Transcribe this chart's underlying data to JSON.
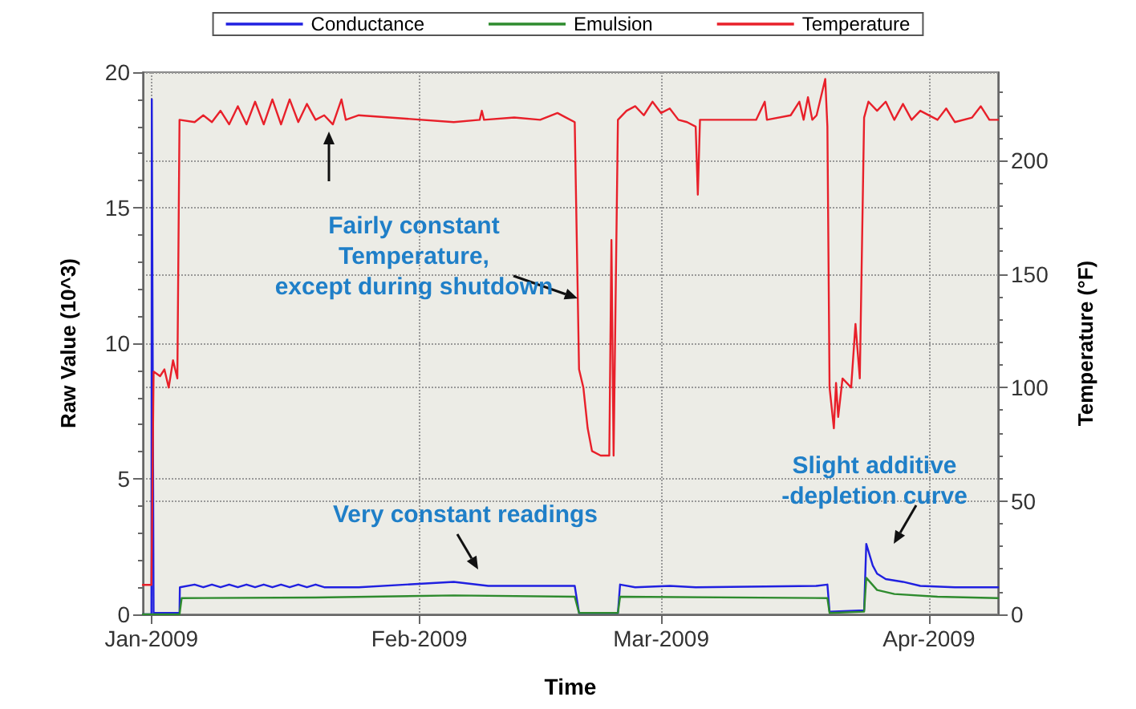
{
  "chart_data": {
    "type": "line",
    "xlabel": "Time",
    "ylabel": "Raw Value (10^3)",
    "y2label": "Temperature (°F)",
    "xlim": [
      "2008-12-31",
      "2009-04-09"
    ],
    "xticks": [
      {
        "value": "2009-01-01",
        "label": "Jan-2009"
      },
      {
        "value": "2009-02-01",
        "label": "Feb-2009"
      },
      {
        "value": "2009-03-01",
        "label": "Mar-2009"
      },
      {
        "value": "2009-04-01",
        "label": "Apr-2009"
      }
    ],
    "ylim": [
      0,
      20
    ],
    "yticks": [
      0,
      5,
      10,
      15,
      20
    ],
    "y2lim": [
      0,
      239
    ],
    "y2ticks": [
      0,
      50,
      100,
      150,
      200
    ],
    "grid": true,
    "legend": "top",
    "marker": "none",
    "line_style": "solid",
    "series": [
      {
        "name": "Conductance",
        "color": "#2020e0",
        "x": [
          "2008-12-31",
          "2009-01-01",
          "2009-01-01T01:00",
          "2009-01-01T06:00",
          "2009-01-04T06:00",
          "2009-01-04T07:00",
          "2009-01-06",
          "2009-01-07",
          "2009-01-08",
          "2009-01-09",
          "2009-01-10",
          "2009-01-11",
          "2009-01-12",
          "2009-01-13",
          "2009-01-14",
          "2009-01-15",
          "2009-01-16",
          "2009-01-17",
          "2009-01-18",
          "2009-01-19",
          "2009-01-20",
          "2009-01-21",
          "2009-01-23",
          "2009-01-25",
          "2009-02-05",
          "2009-02-09",
          "2009-02-19",
          "2009-02-19T12:00",
          "2009-02-24",
          "2009-02-24T06:00",
          "2009-02-26",
          "2009-03-02",
          "2009-03-05",
          "2009-03-19",
          "2009-03-20T06:00",
          "2009-03-20T12:00",
          "2009-03-24T12:00",
          "2009-03-24T18:00",
          "2009-03-25T12:00",
          "2009-03-26",
          "2009-03-27",
          "2009-03-29",
          "2009-03-31",
          "2009-04-04",
          "2009-04-09"
        ],
        "values": [
          0,
          0,
          19,
          0.05,
          0.05,
          1.0,
          1.1,
          1.0,
          1.1,
          1.0,
          1.1,
          1.0,
          1.1,
          1.0,
          1.1,
          1.0,
          1.1,
          1.0,
          1.1,
          1.0,
          1.1,
          1.0,
          1.0,
          1.0,
          1.2,
          1.05,
          1.05,
          0.05,
          0.05,
          1.1,
          1.0,
          1.05,
          1.0,
          1.05,
          1.1,
          0.1,
          0.15,
          2.6,
          1.8,
          1.5,
          1.3,
          1.2,
          1.05,
          1.0,
          1.0
        ]
      },
      {
        "name": "Emulsion",
        "color": "#2e8b2e",
        "x": [
          "2008-12-31",
          "2009-01-04T06:00",
          "2009-01-04T12:00",
          "2009-01-20",
          "2009-02-05",
          "2009-02-19",
          "2009-02-19T12:00",
          "2009-02-24",
          "2009-02-24T06:00",
          "2009-03-20T06:00",
          "2009-03-20T12:00",
          "2009-03-24T12:00",
          "2009-03-24T18:00",
          "2009-03-26",
          "2009-03-28",
          "2009-04-02",
          "2009-04-09"
        ],
        "values": [
          0,
          0,
          0.6,
          0.62,
          0.7,
          0.65,
          0.05,
          0.05,
          0.65,
          0.6,
          0.05,
          0.1,
          1.35,
          0.9,
          0.75,
          0.65,
          0.6
        ]
      },
      {
        "name": "Temperature",
        "color": "#e8202a",
        "axis": "y2",
        "x": [
          "2008-12-31",
          "2009-01-01",
          "2009-01-01T06:00",
          "2009-01-02",
          "2009-01-02T12:00",
          "2009-01-03",
          "2009-01-03T12:00",
          "2009-01-04",
          "2009-01-04T06:00",
          "2009-01-06",
          "2009-01-07",
          "2009-01-08",
          "2009-01-09",
          "2009-01-10",
          "2009-01-11",
          "2009-01-12",
          "2009-01-13",
          "2009-01-14",
          "2009-01-15",
          "2009-01-16",
          "2009-01-17",
          "2009-01-18",
          "2009-01-19",
          "2009-01-20",
          "2009-01-21",
          "2009-01-22",
          "2009-01-23",
          "2009-01-23T12:00",
          "2009-01-25",
          "2009-02-05",
          "2009-02-08",
          "2009-02-08T06:00",
          "2009-02-08T12:00",
          "2009-02-12",
          "2009-02-15",
          "2009-02-17",
          "2009-02-18",
          "2009-02-19",
          "2009-02-19T12:00",
          "2009-02-20",
          "2009-02-20T12:00",
          "2009-02-21",
          "2009-02-22",
          "2009-02-23",
          "2009-02-23T06:00",
          "2009-02-23T12:00",
          "2009-02-24",
          "2009-02-25",
          "2009-02-26",
          "2009-02-27",
          "2009-02-28",
          "2009-03-01",
          "2009-03-02",
          "2009-03-03",
          "2009-03-04",
          "2009-03-05",
          "2009-03-05T06:00",
          "2009-03-05T12:00",
          "2009-03-12",
          "2009-03-13",
          "2009-03-13T06:00",
          "2009-03-16",
          "2009-03-17",
          "2009-03-17T12:00",
          "2009-03-18",
          "2009-03-18T12:00",
          "2009-03-19",
          "2009-03-20",
          "2009-03-20T06:00",
          "2009-03-20T12:00",
          "2009-03-21",
          "2009-03-21T06:00",
          "2009-03-21T12:00",
          "2009-03-22",
          "2009-03-23",
          "2009-03-23T12:00",
          "2009-03-24",
          "2009-03-24T12:00",
          "2009-03-25",
          "2009-03-26",
          "2009-03-27",
          "2009-03-28",
          "2009-03-29",
          "2009-03-30",
          "2009-03-31",
          "2009-04-02",
          "2009-04-03",
          "2009-04-04",
          "2009-04-06",
          "2009-04-07",
          "2009-04-08",
          "2009-04-09"
        ],
        "values": [
          13,
          13,
          107,
          105,
          108,
          100,
          112,
          104,
          218,
          217,
          220,
          217,
          222,
          216,
          224,
          216,
          226,
          216,
          227,
          216,
          227,
          217,
          225,
          218,
          220,
          216,
          227,
          218,
          220,
          217,
          218,
          222,
          218,
          219,
          218,
          221,
          219,
          217,
          108,
          100,
          82,
          72,
          70,
          70,
          165,
          70,
          218,
          222,
          224,
          220,
          226,
          221,
          223,
          218,
          217,
          215,
          185,
          218,
          218,
          226,
          218,
          220,
          226,
          218,
          228,
          218,
          220,
          236,
          215,
          100,
          82,
          102,
          87,
          104,
          100,
          128,
          104,
          219,
          226,
          222,
          226,
          218,
          225,
          218,
          222,
          218,
          223,
          217,
          219,
          224,
          218,
          218
        ]
      }
    ],
    "annotations": [
      "Fairly constant\nTemperature,\nexcept during shutdown",
      "Very constant readings",
      "Slight additive\n-depletion curve"
    ]
  }
}
